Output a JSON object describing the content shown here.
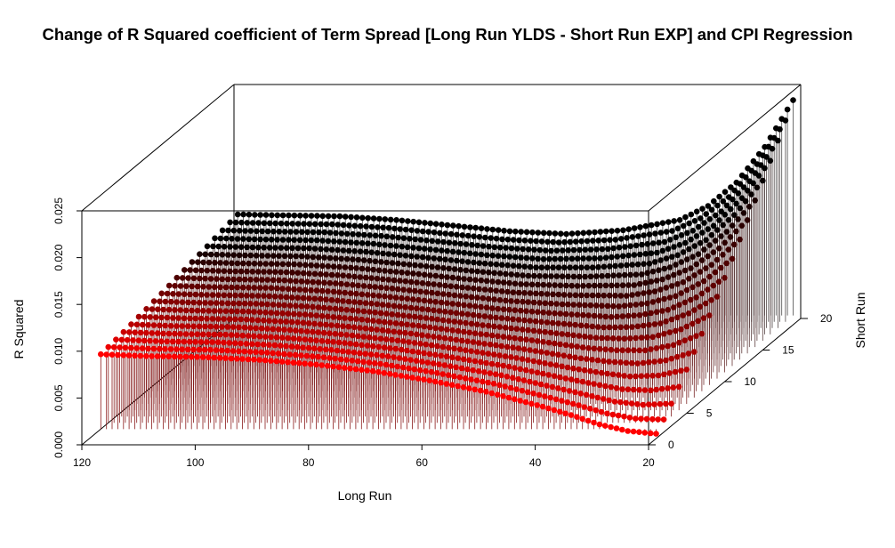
{
  "chart_data": {
    "type": "scatter3d",
    "title": "Change of R Squared coefficient of Term Spread [Long Run YLDS - Short Run EXP] and CPI Regression",
    "xlabel": "Long Run",
    "ylabel": "Short Run",
    "zlabel": "R Squared",
    "xlim": [
      20,
      120
    ],
    "ylim": [
      0,
      20
    ],
    "zlim": [
      0,
      0.025
    ],
    "x_ticks": [
      "120",
      "100",
      "80",
      "60",
      "40",
      "20"
    ],
    "y_ticks": [
      "0",
      "5",
      "10",
      "15",
      "20"
    ],
    "z_ticks": [
      "0.000",
      "0.005",
      "0.010",
      "0.015",
      "0.020",
      "0.025"
    ],
    "grid": false,
    "long_run_range": [
      20,
      118
    ],
    "short_run_range": [
      1,
      19
    ],
    "surface_profile_long_run": [
      20,
      25,
      30,
      35,
      40,
      50,
      60,
      70,
      80,
      90,
      100,
      110,
      118
    ],
    "r_squared_at_short_run_1": [
      0.0005,
      0.0008,
      0.0015,
      0.0025,
      0.0034,
      0.005,
      0.0062,
      0.0072,
      0.0079,
      0.0084,
      0.0087,
      0.0088,
      0.009
    ],
    "r_squared_at_short_run_19": [
      0.024,
      0.019,
      0.0152,
      0.0127,
      0.0112,
      0.0101,
      0.0097,
      0.01,
      0.0106,
      0.0112,
      0.0116,
      0.0117,
      0.0118
    ],
    "colors": {
      "near": "#ff0000",
      "far": "#000000",
      "stem_near": "#8b1a1a",
      "stem_far": "#4d4d4d"
    }
  }
}
